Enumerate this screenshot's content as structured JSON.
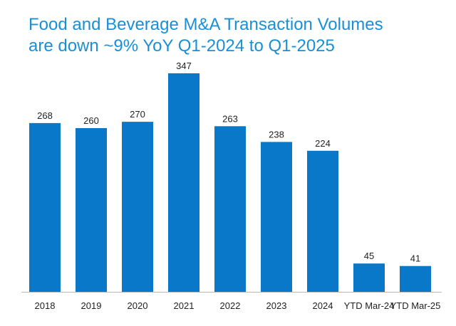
{
  "chart_data": {
    "type": "bar",
    "title_line1": "Food and Beverage M&A Transaction Volumes",
    "title_line2": "are down ~9% YoY Q1-2024 to Q1-2025",
    "categories": [
      "2018",
      "2019",
      "2020",
      "2021",
      "2022",
      "2023",
      "2024",
      "YTD Mar-24",
      "YTD Mar-25"
    ],
    "values": [
      268,
      260,
      270,
      347,
      263,
      238,
      224,
      45,
      41
    ],
    "data_labels": [
      "268",
      "260",
      "270",
      "347",
      "263",
      "238",
      "224",
      "45",
      "41"
    ],
    "xlabel": "",
    "ylabel": "",
    "ylim": [
      0,
      347
    ],
    "grid": false,
    "bar_color": "#0a78c8",
    "axis_color": "#bbbbbb"
  }
}
